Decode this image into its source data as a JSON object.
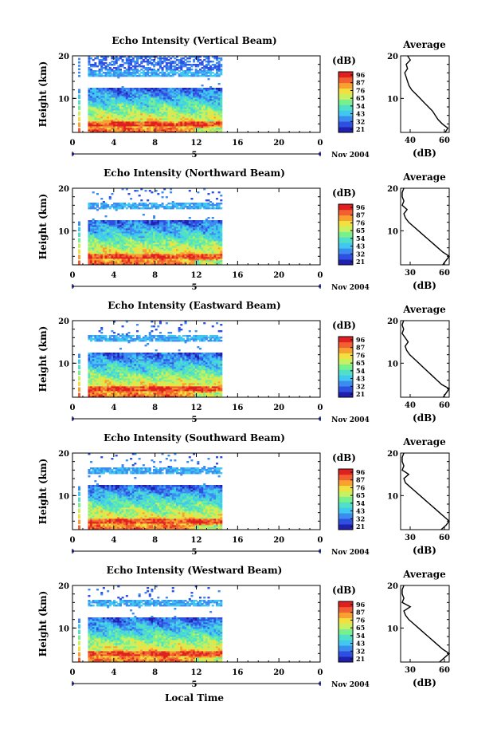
{
  "footer": {
    "xlabel": "Local Time"
  },
  "colorbar": {
    "unit": "(dB)",
    "ticks": [
      "96",
      "87",
      "76",
      "65",
      "54",
      "43",
      "32",
      "21"
    ],
    "colors": [
      "#2020b0",
      "#2e50e0",
      "#3c8cf0",
      "#40c8f0",
      "#50e0c8",
      "#78f090",
      "#c8f060",
      "#f0e040",
      "#f8a030",
      "#f06030",
      "#e02020"
    ]
  },
  "chart_data": [
    {
      "type": "heatmap",
      "title": "Echo Intensity (Vertical Beam)",
      "ylabel": "Height (km)",
      "xlim": [
        0,
        24
      ],
      "ylim": [
        2,
        20
      ],
      "x_ticks": [
        "0",
        "4",
        "8",
        "12",
        "16",
        "20",
        "0"
      ],
      "y_ticks": [
        "20",
        "10"
      ],
      "day_marker": "5",
      "date_label": "Nov 2004",
      "data_x_range": [
        1.5,
        14.5
      ],
      "value_unit": "dB",
      "value_range": [
        21,
        96
      ],
      "profile": {
        "title": "Average",
        "xlabel": "(dB)",
        "x_ticks": [
          "40",
          "60"
        ],
        "xlim": [
          30,
          65
        ],
        "ylim": [
          2,
          20
        ],
        "y_ticks": [
          "20",
          "10"
        ],
        "points": [
          [
            35,
            20
          ],
          [
            37,
            19
          ],
          [
            34,
            18
          ],
          [
            35,
            17
          ],
          [
            33,
            16
          ],
          [
            34,
            15
          ],
          [
            35,
            14
          ],
          [
            36,
            13
          ],
          [
            38,
            12
          ],
          [
            41,
            11
          ],
          [
            44,
            10
          ],
          [
            47,
            9
          ],
          [
            50,
            8
          ],
          [
            53,
            7
          ],
          [
            55,
            6
          ],
          [
            57,
            5
          ],
          [
            60,
            4
          ],
          [
            64,
            3
          ],
          [
            62,
            2
          ]
        ]
      }
    },
    {
      "type": "heatmap",
      "title": "Echo Intensity (Northward Beam)",
      "ylabel": "Height (km)",
      "xlim": [
        0,
        24
      ],
      "ylim": [
        2,
        20
      ],
      "x_ticks": [
        "0",
        "4",
        "8",
        "12",
        "16",
        "20",
        "0"
      ],
      "y_ticks": [
        "20",
        "10"
      ],
      "day_marker": "5",
      "date_label": "Nov 2004",
      "data_x_range": [
        1.5,
        14.5
      ],
      "value_unit": "dB",
      "value_range": [
        21,
        96
      ],
      "profile": {
        "title": "Average",
        "xlabel": "(dB)",
        "x_ticks": [
          "30",
          "60"
        ],
        "xlim": [
          30,
          60
        ],
        "ylim": [
          2,
          20
        ],
        "y_ticks": [
          "20",
          "10"
        ],
        "points": [
          [
            32,
            20
          ],
          [
            31,
            19
          ],
          [
            31,
            18
          ],
          [
            32,
            17
          ],
          [
            31,
            16
          ],
          [
            34,
            15
          ],
          [
            32,
            14
          ],
          [
            33,
            13
          ],
          [
            35,
            12
          ],
          [
            38,
            11
          ],
          [
            41,
            10
          ],
          [
            44,
            9
          ],
          [
            47,
            8
          ],
          [
            50,
            7
          ],
          [
            53,
            6
          ],
          [
            56,
            5
          ],
          [
            60,
            4
          ],
          [
            58,
            3
          ],
          [
            56,
            2
          ]
        ]
      }
    },
    {
      "type": "heatmap",
      "title": "Echo Intensity (Eastward Beam)",
      "ylabel": "Height (km)",
      "xlim": [
        0,
        24
      ],
      "ylim": [
        2,
        20
      ],
      "x_ticks": [
        "0",
        "4",
        "8",
        "12",
        "16",
        "20",
        "0"
      ],
      "y_ticks": [
        "20",
        "10"
      ],
      "day_marker": "5",
      "date_label": "Nov 2004",
      "data_x_range": [
        1.5,
        14.5
      ],
      "value_unit": "dB",
      "value_range": [
        21,
        96
      ],
      "profile": {
        "title": "Average",
        "xlabel": "(dB)",
        "x_ticks": [
          "40",
          "60"
        ],
        "xlim": [
          30,
          62
        ],
        "ylim": [
          2,
          20
        ],
        "y_ticks": [
          "20",
          "10"
        ],
        "points": [
          [
            32,
            20
          ],
          [
            31,
            19
          ],
          [
            32,
            18
          ],
          [
            31,
            17
          ],
          [
            33,
            16
          ],
          [
            35,
            15
          ],
          [
            33,
            14
          ],
          [
            34,
            13
          ],
          [
            36,
            12
          ],
          [
            39,
            11
          ],
          [
            42,
            10
          ],
          [
            45,
            9
          ],
          [
            48,
            8
          ],
          [
            51,
            7
          ],
          [
            54,
            6
          ],
          [
            57,
            5
          ],
          [
            62,
            4
          ],
          [
            60,
            3
          ],
          [
            58,
            2
          ]
        ]
      }
    },
    {
      "type": "heatmap",
      "title": "Echo Intensity (Southward Beam)",
      "ylabel": "Height (km)",
      "xlim": [
        0,
        24
      ],
      "ylim": [
        2,
        20
      ],
      "x_ticks": [
        "0",
        "4",
        "8",
        "12",
        "16",
        "20",
        "0"
      ],
      "y_ticks": [
        "20",
        "10"
      ],
      "day_marker": "5",
      "date_label": "Nov 2004",
      "data_x_range": [
        1.5,
        14.5
      ],
      "value_unit": "dB",
      "value_range": [
        21,
        96
      ],
      "profile": {
        "title": "Average",
        "xlabel": "(dB)",
        "x_ticks": [
          "30",
          "60"
        ],
        "xlim": [
          30,
          60
        ],
        "ylim": [
          2,
          20
        ],
        "y_ticks": [
          "20",
          "10"
        ],
        "points": [
          [
            32,
            20
          ],
          [
            31,
            19
          ],
          [
            31,
            18
          ],
          [
            32,
            17
          ],
          [
            31,
            16
          ],
          [
            35,
            15
          ],
          [
            32,
            14
          ],
          [
            33,
            13
          ],
          [
            36,
            12
          ],
          [
            39,
            11
          ],
          [
            42,
            10
          ],
          [
            45,
            9
          ],
          [
            48,
            8
          ],
          [
            51,
            7
          ],
          [
            54,
            6
          ],
          [
            57,
            5
          ],
          [
            60,
            4
          ],
          [
            58,
            3
          ],
          [
            55,
            2
          ]
        ]
      }
    },
    {
      "type": "heatmap",
      "title": "Echo Intensity (Westward Beam)",
      "ylabel": "Height (km)",
      "xlim": [
        0,
        24
      ],
      "ylim": [
        2,
        20
      ],
      "x_ticks": [
        "0",
        "4",
        "8",
        "12",
        "16",
        "20",
        "0"
      ],
      "y_ticks": [
        "20",
        "10"
      ],
      "day_marker": "5",
      "date_label": "Nov 2004",
      "data_x_range": [
        1.5,
        14.5
      ],
      "value_unit": "dB",
      "value_range": [
        21,
        96
      ],
      "profile": {
        "title": "Average",
        "xlabel": "(dB)",
        "x_ticks": [
          "30",
          "60"
        ],
        "xlim": [
          30,
          60
        ],
        "ylim": [
          2,
          20
        ],
        "y_ticks": [
          "20",
          "10"
        ],
        "points": [
          [
            32,
            20
          ],
          [
            31,
            19
          ],
          [
            31,
            18
          ],
          [
            32,
            17
          ],
          [
            31,
            16
          ],
          [
            36,
            15
          ],
          [
            32,
            14
          ],
          [
            33,
            13
          ],
          [
            35,
            12
          ],
          [
            38,
            11
          ],
          [
            41,
            10
          ],
          [
            44,
            9
          ],
          [
            47,
            8
          ],
          [
            50,
            7
          ],
          [
            53,
            6
          ],
          [
            56,
            5
          ],
          [
            60,
            4
          ],
          [
            57,
            3
          ],
          [
            54,
            2
          ]
        ]
      }
    }
  ]
}
